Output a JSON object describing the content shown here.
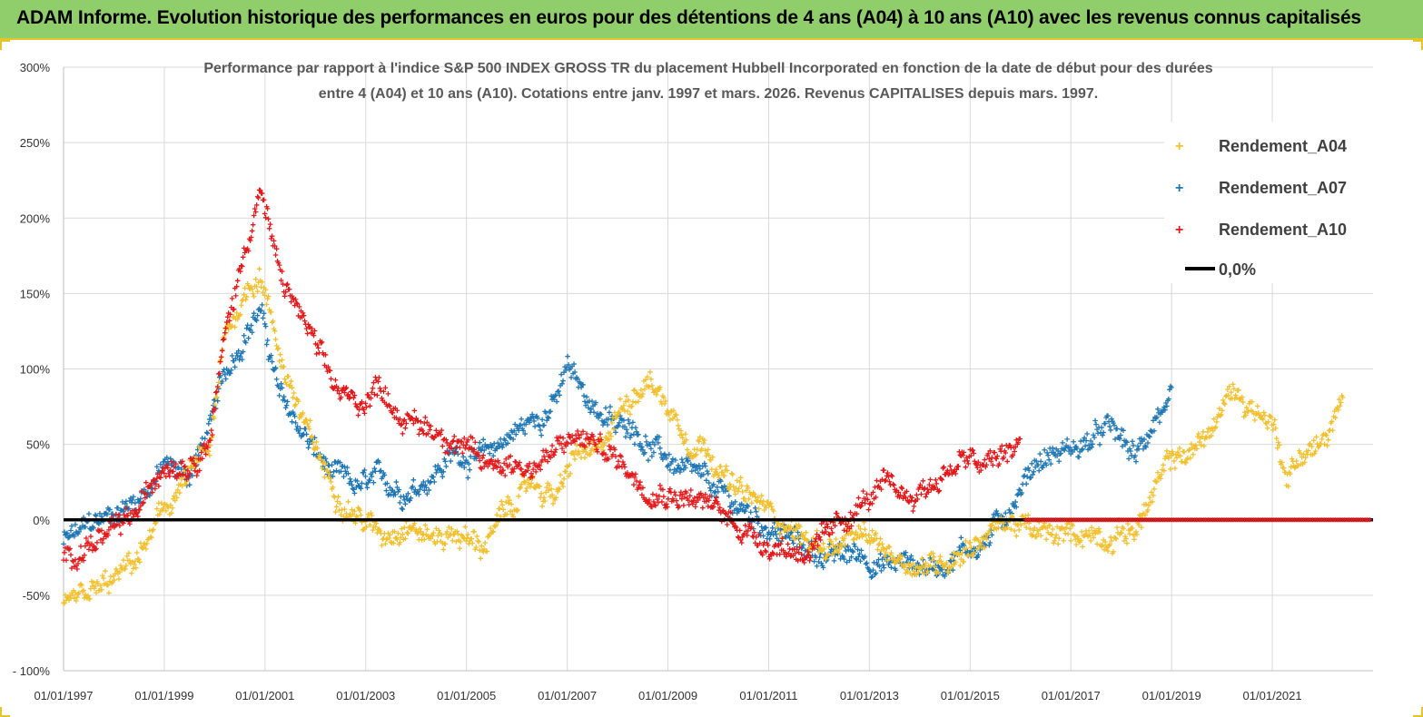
{
  "header": {
    "title": "ADAM Informe. Evolution historique des performances en euros pour des détentions de 4 ans (A04) à 10 ans (A10) avec les revenus connus capitalisés"
  },
  "colors": {
    "a04": "#f2c02e",
    "a07": "#1f77b4",
    "a10": "#e31a1c",
    "zero": "#000000",
    "header_bg": "#8fce6a"
  },
  "chart_data": {
    "type": "scatter",
    "subtitle_line1": "Performance par rapport à l'indice S&P 500 INDEX GROSS TR  du placement Hubbell Incorporated en fonction de la date de début pour des durées",
    "subtitle_line2": "entre 4 (A04) et 10 ans (A10). Cotations entre janv. 1997 et mars. 2026. Revenus CAPITALISES depuis mars. 1997.",
    "xlabel": "",
    "ylabel": "",
    "xlim": [
      1997.0,
      2023.0
    ],
    "ylim": [
      -100,
      300
    ],
    "y_ticks": [
      -100,
      -50,
      0,
      50,
      100,
      150,
      200,
      250,
      300
    ],
    "y_tick_labels": [
      "- 100%",
      "-50%",
      "0%",
      "50%",
      "100%",
      "150%",
      "200%",
      "250%",
      "300%"
    ],
    "x_ticks": [
      1997,
      1999,
      2001,
      2003,
      2005,
      2007,
      2009,
      2011,
      2013,
      2015,
      2017,
      2019,
      2021
    ],
    "x_tick_labels": [
      "01/01/1997",
      "01/01/1999",
      "01/01/2001",
      "01/01/2003",
      "01/01/2005",
      "01/01/2007",
      "01/01/2009",
      "01/01/2011",
      "01/01/2013",
      "01/01/2015",
      "01/01/2017",
      "01/01/2019",
      "01/01/2021"
    ],
    "legend_position": "top-right",
    "series": [
      {
        "name": "Rendement_A04",
        "x": [
          1997.0,
          1997.5,
          1998.0,
          1998.5,
          1999.0,
          1999.5,
          1999.9,
          2000.2,
          2000.6,
          2000.9,
          2001.3,
          2001.8,
          2002.3,
          2002.8,
          2003.3,
          2003.8,
          2004.3,
          2004.8,
          2005.3,
          2005.8,
          2006.3,
          2006.8,
          2007.2,
          2007.6,
          2008.0,
          2008.3,
          2008.6,
          2009.0,
          2009.4,
          2009.8,
          2010.3,
          2010.8,
          2011.3,
          2011.8,
          2012.3,
          2012.8,
          2013.3,
          2013.8,
          2014.3,
          2014.8,
          2015.3,
          2015.8,
          2016.3,
          2016.8,
          2017.3,
          2017.8,
          2018.3,
          2018.7,
          2019.0,
          2019.4,
          2019.8,
          2020.2,
          2020.6,
          2021.0,
          2021.3,
          2021.6,
          2022.0,
          2022.4
        ],
        "y": [
          -58,
          -52,
          -42,
          -25,
          5,
          30,
          45,
          120,
          150,
          165,
          110,
          60,
          25,
          5,
          -10,
          0,
          -12,
          -8,
          -18,
          5,
          25,
          15,
          45,
          40,
          70,
          85,
          95,
          75,
          55,
          50,
          20,
          10,
          0,
          -15,
          -18,
          -12,
          -20,
          -28,
          -30,
          -20,
          -10,
          0,
          -10,
          -12,
          -8,
          -10,
          -5,
          20,
          40,
          45,
          60,
          85,
          75,
          65,
          30,
          45,
          50,
          75
        ]
      },
      {
        "name": "Rendement_A07",
        "x": [
          1997.0,
          1997.5,
          1998.0,
          1998.5,
          1999.0,
          1999.5,
          1999.9,
          2000.2,
          2000.6,
          2000.9,
          2001.3,
          2001.8,
          2002.3,
          2002.8,
          2003.3,
          2003.8,
          2004.3,
          2004.8,
          2005.3,
          2005.8,
          2006.3,
          2006.8,
          2007.0,
          2007.3,
          2007.7,
          2008.0,
          2008.3,
          2008.6,
          2009.0,
          2009.4,
          2009.8,
          2010.3,
          2010.8,
          2011.3,
          2011.8,
          2012.3,
          2012.8,
          2013.3,
          2013.8,
          2014.3,
          2014.8,
          2015.3,
          2015.6,
          2015.9,
          2016.3,
          2016.8,
          2017.3,
          2017.8,
          2018.3,
          2018.7,
          2019.0
        ],
        "y": [
          -15,
          -5,
          5,
          15,
          35,
          30,
          60,
          95,
          125,
          140,
          80,
          55,
          30,
          20,
          25,
          20,
          30,
          45,
          40,
          55,
          65,
          80,
          100,
          85,
          70,
          60,
          65,
          50,
          40,
          30,
          22,
          10,
          0,
          -10,
          -20,
          -25,
          -22,
          -30,
          -28,
          -32,
          -20,
          -15,
          0,
          15,
          40,
          45,
          50,
          60,
          40,
          70,
          75
        ]
      },
      {
        "name": "Rendement_A10",
        "x": [
          1997.0,
          1997.5,
          1998.0,
          1998.5,
          1999.0,
          1999.5,
          1999.9,
          2000.2,
          2000.6,
          2000.9,
          2001.3,
          2001.8,
          2002.3,
          2002.8,
          2003.3,
          2003.8,
          2004.3,
          2004.8,
          2005.3,
          2005.8,
          2006.3,
          2006.8,
          2007.2,
          2007.6,
          2008.0,
          2008.5,
          2009.0,
          2009.5,
          2010.0,
          2010.5,
          2011.0,
          2011.5,
          2012.0,
          2012.4,
          2012.8,
          2013.3,
          2013.8,
          2014.3,
          2014.8,
          2015.3,
          2015.8,
          2016.0
        ],
        "y": [
          -25,
          -15,
          -10,
          5,
          40,
          40,
          55,
          120,
          180,
          220,
          160,
          130,
          90,
          75,
          90,
          65,
          60,
          55,
          35,
          40,
          35,
          45,
          55,
          50,
          40,
          25,
          20,
          15,
          5,
          -5,
          -15,
          -20,
          -18,
          -5,
          10,
          20,
          15,
          25,
          40,
          35,
          45,
          50
        ]
      },
      {
        "name": "0,0%",
        "x": [
          1997.0,
          2023.0
        ],
        "y": [
          0,
          0
        ]
      }
    ]
  }
}
